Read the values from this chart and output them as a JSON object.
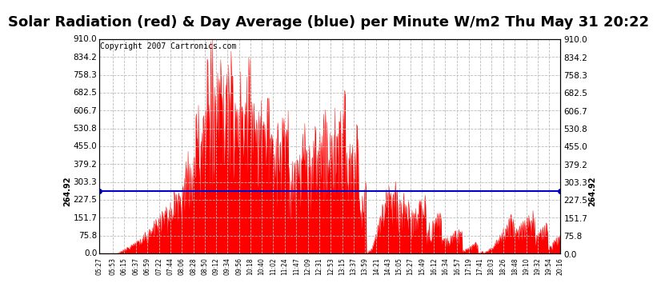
{
  "title": "Solar Radiation (red) & Day Average (blue) per Minute W/m2 Thu May 31 20:22",
  "copyright": "Copyright 2007 Cartronics.com",
  "avg_value": 264.92,
  "avg_label": "264.92",
  "ymin": 0.0,
  "ymax": 910.0,
  "yticks": [
    0.0,
    75.8,
    151.7,
    227.5,
    303.3,
    379.2,
    455.0,
    530.8,
    606.7,
    682.5,
    758.3,
    834.2,
    910.0
  ],
  "bg_color": "#ffffff",
  "plot_bg_color": "#ffffff",
  "bar_color": "#ff0000",
  "line_color": "#0000cc",
  "grid_color": "#bbbbbb",
  "title_fontsize": 14,
  "copyright_fontsize": 7,
  "xtick_labels": [
    "05:27",
    "05:53",
    "06:15",
    "06:37",
    "06:59",
    "07:22",
    "07:44",
    "08:06",
    "08:28",
    "08:50",
    "09:12",
    "09:34",
    "09:56",
    "10:18",
    "10:40",
    "11:02",
    "11:24",
    "11:47",
    "12:09",
    "12:31",
    "12:53",
    "13:15",
    "13:37",
    "13:59",
    "14:21",
    "14:43",
    "15:05",
    "15:27",
    "15:49",
    "16:12",
    "16:34",
    "16:57",
    "17:19",
    "17:41",
    "18:03",
    "18:26",
    "18:48",
    "19:10",
    "19:32",
    "19:54",
    "20:16"
  ]
}
